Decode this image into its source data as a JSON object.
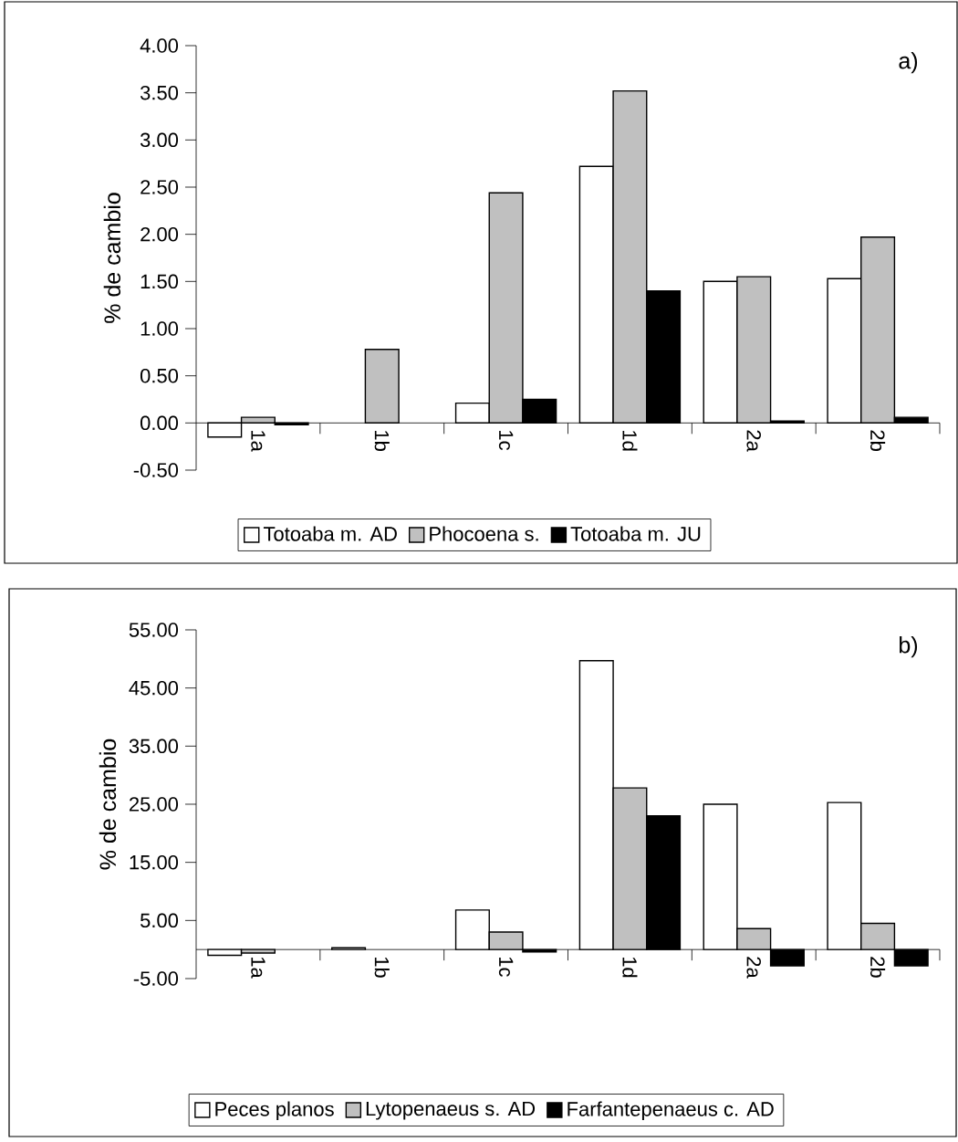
{
  "chart_data": [
    {
      "type": "bar",
      "categories": [
        "1a",
        "1b",
        "1c",
        "1d",
        "2a",
        "2b"
      ],
      "ylabel": "% de cambio",
      "ylim": [
        -0.5,
        4.0
      ],
      "yticks": [
        {
          "value": -0.5,
          "label": "-0.50"
        },
        {
          "value": 0,
          "label": "0.00"
        },
        {
          "value": 0.5,
          "label": "0.50"
        },
        {
          "value": 1.0,
          "label": "1.00"
        },
        {
          "value": 1.5,
          "label": "1.50"
        },
        {
          "value": 2.0,
          "label": "2.00"
        },
        {
          "value": 2.5,
          "label": "2.50"
        },
        {
          "value": 3.0,
          "label": "3.00"
        },
        {
          "value": 3.5,
          "label": "3.50"
        },
        {
          "value": 4.0,
          "label": "4.00"
        }
      ],
      "series": [
        {
          "name": "Totoaba m. AD",
          "color": "#ffffff",
          "values": [
            -0.15,
            null,
            0.21,
            2.72,
            1.5,
            1.53
          ]
        },
        {
          "name": "Phocoena s.",
          "color": "#c0c0c0",
          "values": [
            0.06,
            0.78,
            2.44,
            3.52,
            1.55,
            1.97
          ]
        },
        {
          "name": "Totoaba m. JU",
          "color": "#000000",
          "values": [
            -0.02,
            null,
            0.25,
            1.4,
            0.02,
            0.06
          ]
        }
      ],
      "legend": "bottom",
      "annotations": [
        "a)"
      ]
    },
    {
      "type": "bar",
      "categories": [
        "1a",
        "1b",
        "1c",
        "1d",
        "2a",
        "2b"
      ],
      "ylabel": "% de cambio",
      "ylim": [
        -5,
        55
      ],
      "yticks": [
        {
          "value": -5,
          "label": "-5.00"
        },
        {
          "value": 5,
          "label": "5.00"
        },
        {
          "value": 15,
          "label": "15.00"
        },
        {
          "value": 25,
          "label": "25.00"
        },
        {
          "value": 35,
          "label": "35.00"
        },
        {
          "value": 45,
          "label": "45.00"
        },
        {
          "value": 55,
          "label": "55.00"
        }
      ],
      "series": [
        {
          "name": "Peces planos",
          "color": "#ffffff",
          "values": [
            -1.0,
            0.3,
            6.8,
            49.7,
            25.0,
            25.3
          ]
        },
        {
          "name": "Lytopenaeus s. AD",
          "color": "#c0c0c0",
          "values": [
            -0.6,
            null,
            3.0,
            27.8,
            3.6,
            4.5
          ]
        },
        {
          "name": "Farfantepenaeus c. AD",
          "color": "#000000",
          "values": [
            null,
            null,
            -0.4,
            23.0,
            -2.8,
            -2.8
          ]
        }
      ],
      "legend": "bottom",
      "annotations": [
        "b)"
      ]
    }
  ]
}
